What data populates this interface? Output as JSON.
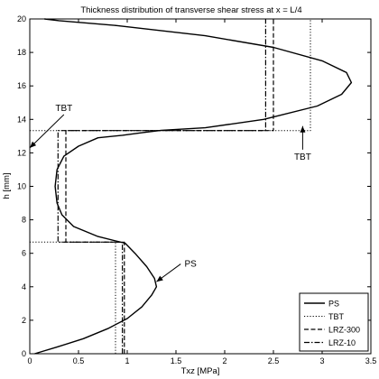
{
  "chart_data": {
    "type": "line",
    "title": "Thickness distribution of transverse shear stress at x = L/4",
    "xlabel": "Txz [MPa]",
    "ylabel": "h [mm]",
    "xlim": [
      0,
      3.5
    ],
    "ylim": [
      0,
      20
    ],
    "xticks": [
      0,
      0.5,
      1,
      1.5,
      2,
      2.5,
      3,
      3.5
    ],
    "xtick_labels": [
      "0",
      "0.5",
      "1",
      "1.5",
      "2",
      "2.5",
      "3",
      "3.5"
    ],
    "yticks": [
      0,
      2,
      4,
      6,
      8,
      10,
      12,
      14,
      16,
      18,
      20
    ],
    "ytick_labels": [
      "0",
      "2",
      "4",
      "6",
      "8",
      "10",
      "12",
      "14",
      "16",
      "18",
      "20"
    ],
    "grid": false,
    "legend_position": "bottom-right",
    "series": [
      {
        "name": "PS",
        "style": "solid",
        "color": "#000000",
        "points": [
          [
            0.05,
            0.0
          ],
          [
            0.28,
            0.4
          ],
          [
            0.55,
            0.9
          ],
          [
            0.8,
            1.5
          ],
          [
            1.0,
            2.1
          ],
          [
            1.15,
            2.8
          ],
          [
            1.25,
            3.5
          ],
          [
            1.3,
            4.0
          ],
          [
            1.28,
            4.5
          ],
          [
            1.2,
            5.2
          ],
          [
            1.08,
            6.0
          ],
          [
            0.98,
            6.6
          ],
          [
            0.7,
            7.0
          ],
          [
            0.45,
            7.6
          ],
          [
            0.33,
            8.3
          ],
          [
            0.28,
            9.0
          ],
          [
            0.26,
            10.0
          ],
          [
            0.28,
            11.0
          ],
          [
            0.35,
            11.8
          ],
          [
            0.5,
            12.4
          ],
          [
            0.7,
            12.9
          ],
          [
            0.95,
            13.05
          ],
          [
            1.15,
            13.2
          ],
          [
            1.35,
            13.35
          ],
          [
            1.8,
            13.5
          ],
          [
            2.4,
            14.0
          ],
          [
            2.95,
            14.8
          ],
          [
            3.2,
            15.5
          ],
          [
            3.3,
            16.2
          ],
          [
            3.25,
            16.8
          ],
          [
            3.0,
            17.5
          ],
          [
            2.5,
            18.3
          ],
          [
            1.8,
            19.0
          ],
          [
            0.9,
            19.6
          ],
          [
            0.3,
            19.9
          ],
          [
            0.15,
            20.0
          ]
        ]
      },
      {
        "name": "TBT",
        "style": "dotted",
        "color": "#000000",
        "points": [
          [
            0.88,
            0.0
          ],
          [
            0.88,
            6.67
          ],
          [
            0.0,
            6.67
          ],
          [
            0.0,
            13.33
          ],
          [
            2.88,
            13.33
          ],
          [
            2.88,
            20.0
          ]
        ]
      },
      {
        "name": "LRZ-300",
        "style": "dashed",
        "color": "#000000",
        "points": [
          [
            0.97,
            0.0
          ],
          [
            0.97,
            6.67
          ],
          [
            0.37,
            6.67
          ],
          [
            0.37,
            13.33
          ],
          [
            2.5,
            13.33
          ],
          [
            2.5,
            20.0
          ]
        ]
      },
      {
        "name": "LRZ-10",
        "style": "dashdot",
        "color": "#000000",
        "points": [
          [
            0.95,
            0.0
          ],
          [
            0.95,
            6.67
          ],
          [
            0.29,
            6.67
          ],
          [
            0.29,
            13.33
          ],
          [
            2.42,
            13.33
          ],
          [
            2.42,
            20.0
          ]
        ]
      }
    ],
    "annotations": [
      {
        "text": "TBT",
        "label_x": 0.35,
        "label_y": 14.5,
        "arrow_to_x": 0.0,
        "arrow_to_y": 12.3
      },
      {
        "text": "TBT",
        "label_x": 2.8,
        "label_y": 11.6,
        "arrow_to_x": 2.8,
        "arrow_to_y": 13.6
      },
      {
        "text": "PS",
        "label_x": 1.65,
        "label_y": 5.2,
        "arrow_to_x": 1.3,
        "arrow_to_y": 4.3
      }
    ]
  }
}
